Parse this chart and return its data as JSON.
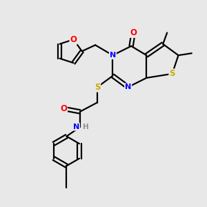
{
  "background_color": "#e8e8e8",
  "bond_color": "#000000",
  "atom_colors": {
    "O": "#ff0000",
    "N": "#0000ff",
    "S": "#ccaa00",
    "C": "#000000",
    "H": "#909090"
  }
}
